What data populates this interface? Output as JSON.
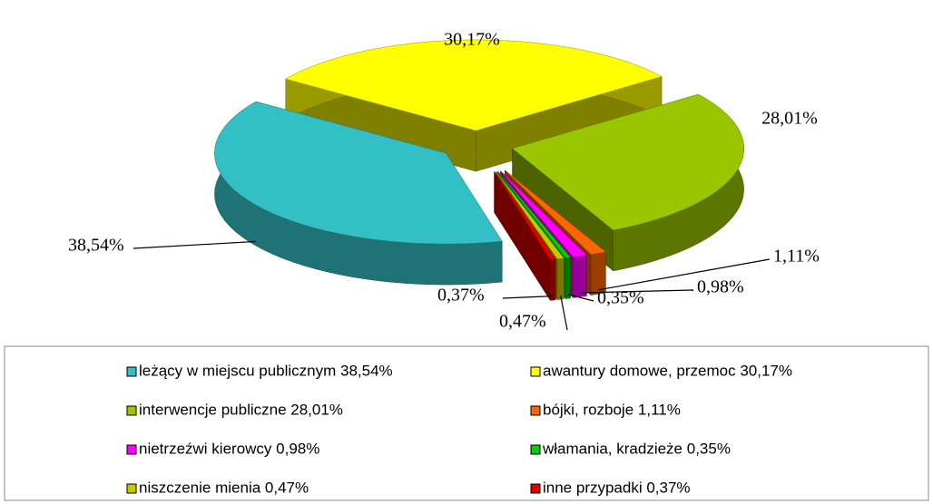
{
  "chart_data": {
    "type": "pie",
    "categories": [
      "leżący w miejscu publicznym 38,54%",
      "awantury domowe, przemoc 30,17%",
      "interwencje publiczne 28,01%",
      "bójki, rozboje 1,11%",
      "nietrzeźwi kierowcy 0,98%",
      "włamania, kradzieże 0,35%",
      "niszczenie mienia 0,47%",
      "inne przypadki 0,37%"
    ],
    "values": [
      38.54,
      30.17,
      28.01,
      1.11,
      0.98,
      0.35,
      0.47,
      0.37
    ],
    "value_labels": [
      "38,54%",
      "30,17%",
      "28,01%",
      "1,11%",
      "0,98%",
      "0,35%",
      "0,47%",
      "0,37%"
    ],
    "colors": [
      "#33c0c4",
      "#ffff00",
      "#99c600",
      "#ff6600",
      "#ff00ff",
      "#00d000",
      "#c8c800",
      "#e00000"
    ],
    "legend": "bottom"
  }
}
